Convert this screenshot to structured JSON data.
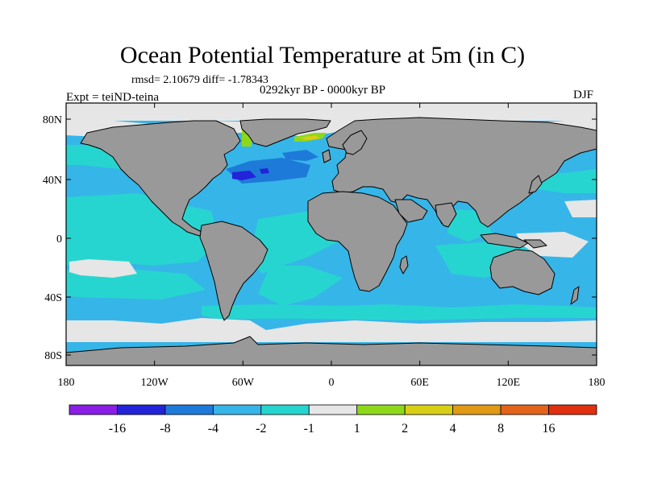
{
  "title": "Ocean Potential Temperature at 5m (in C)",
  "stats_text": "rmsd= 2.10679 diff= -1.78343",
  "experiment_text": "Expt = teiND-teina",
  "period_text": "0292kyr BP - 0000kyr BP",
  "season_text": "DJF",
  "lat_ticks": [
    "80N",
    "40N",
    "0",
    "40S",
    "80S"
  ],
  "lon_ticks": [
    "180",
    "120W",
    "60W",
    "0",
    "60E",
    "120E",
    "180"
  ],
  "colors": {
    "land": "#999999",
    "ocean_base": "#36b5e8",
    "near_zero": "#e6e6e6"
  },
  "colorbar": {
    "colors": [
      "#8a1ee6",
      "#2323d9",
      "#1e7ad9",
      "#36b5e8",
      "#27d5d0",
      "#e6e6e6",
      "#8ed81a",
      "#d8cf14",
      "#e09a13",
      "#e3631a",
      "#e0300f"
    ],
    "labels": [
      "-16",
      "-8",
      "-4",
      "-2",
      "-1",
      "1",
      "2",
      "4",
      "8",
      "16"
    ]
  }
}
